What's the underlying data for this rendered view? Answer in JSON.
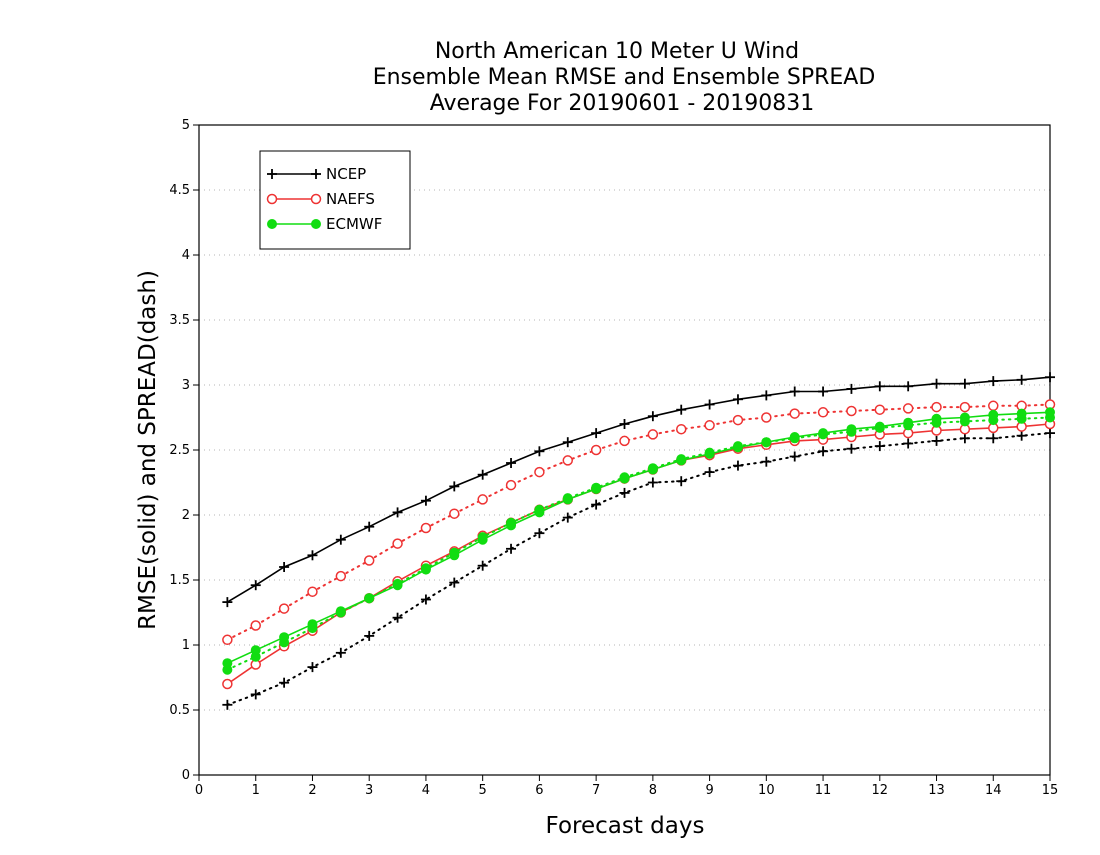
{
  "chart_data": {
    "type": "line",
    "title_lines": [
      "North American 10 Meter U Wind",
      "Ensemble Mean RMSE and Ensemble SPREAD",
      "Average For 20190601 - 20190831"
    ],
    "xlabel": "Forecast days",
    "ylabel": "RMSE(solid) and SPREAD(dash)",
    "xlim": [
      0,
      15
    ],
    "ylim": [
      0,
      5
    ],
    "xticks": [
      "0",
      "1",
      "2",
      "3",
      "4",
      "5",
      "6",
      "7",
      "8",
      "9",
      "10",
      "11",
      "12",
      "13",
      "14",
      "15"
    ],
    "yticks": [
      "0",
      "0.5",
      "1",
      "1.5",
      "2",
      "2.5",
      "3",
      "3.5",
      "4",
      "4.5",
      "5"
    ],
    "grid": "horizontal dotted",
    "legend_position": "top-left",
    "x": [
      0.5,
      1,
      1.5,
      2,
      2.5,
      3,
      3.5,
      4,
      4.5,
      5,
      5.5,
      6,
      6.5,
      7,
      7.5,
      8,
      8.5,
      9,
      9.5,
      10,
      10.5,
      11,
      11.5,
      12,
      12.5,
      13,
      13.5,
      14,
      14.5,
      15
    ],
    "series": [
      {
        "name": "NCEP",
        "color": "#000000",
        "marker": "plus",
        "rmse": [
          1.33,
          1.46,
          1.6,
          1.69,
          1.81,
          1.91,
          2.02,
          2.11,
          2.22,
          2.31,
          2.4,
          2.49,
          2.56,
          2.63,
          2.7,
          2.76,
          2.81,
          2.85,
          2.89,
          2.92,
          2.95,
          2.95,
          2.97,
          2.99,
          2.99,
          3.01,
          3.01,
          3.03,
          3.04,
          3.06
        ],
        "spread": [
          0.54,
          0.62,
          0.71,
          0.83,
          0.94,
          1.07,
          1.21,
          1.35,
          1.48,
          1.61,
          1.74,
          1.86,
          1.98,
          2.08,
          2.17,
          2.25,
          2.26,
          2.33,
          2.38,
          2.41,
          2.45,
          2.49,
          2.51,
          2.53,
          2.55,
          2.57,
          2.59,
          2.59,
          2.61,
          2.63
        ]
      },
      {
        "name": "NAEFS",
        "color": "#ee3333",
        "marker": "open-circle",
        "rmse": [
          0.7,
          0.85,
          0.99,
          1.11,
          1.25,
          1.36,
          1.49,
          1.61,
          1.72,
          1.84,
          1.94,
          2.04,
          2.12,
          2.2,
          2.28,
          2.35,
          2.42,
          2.46,
          2.51,
          2.54,
          2.57,
          2.58,
          2.6,
          2.62,
          2.63,
          2.65,
          2.66,
          2.67,
          2.68,
          2.7
        ],
        "spread": [
          1.04,
          1.15,
          1.28,
          1.41,
          1.53,
          1.65,
          1.78,
          1.9,
          2.01,
          2.12,
          2.23,
          2.33,
          2.42,
          2.5,
          2.57,
          2.62,
          2.66,
          2.69,
          2.73,
          2.75,
          2.78,
          2.79,
          2.8,
          2.81,
          2.82,
          2.83,
          2.83,
          2.84,
          2.84,
          2.85
        ]
      },
      {
        "name": "ECMWF",
        "color": "#11dd11",
        "marker": "filled-circle",
        "rmse": [
          0.86,
          0.96,
          1.06,
          1.16,
          1.26,
          1.36,
          1.46,
          1.58,
          1.69,
          1.81,
          1.92,
          2.02,
          2.12,
          2.2,
          2.28,
          2.35,
          2.42,
          2.47,
          2.52,
          2.56,
          2.6,
          2.63,
          2.66,
          2.68,
          2.71,
          2.74,
          2.75,
          2.77,
          2.78,
          2.79
        ],
        "spread": [
          0.81,
          0.91,
          1.02,
          1.13,
          1.25,
          1.36,
          1.47,
          1.59,
          1.71,
          1.83,
          1.94,
          2.04,
          2.13,
          2.21,
          2.29,
          2.36,
          2.43,
          2.48,
          2.53,
          2.56,
          2.59,
          2.62,
          2.64,
          2.67,
          2.69,
          2.71,
          2.72,
          2.73,
          2.74,
          2.75
        ]
      }
    ]
  }
}
